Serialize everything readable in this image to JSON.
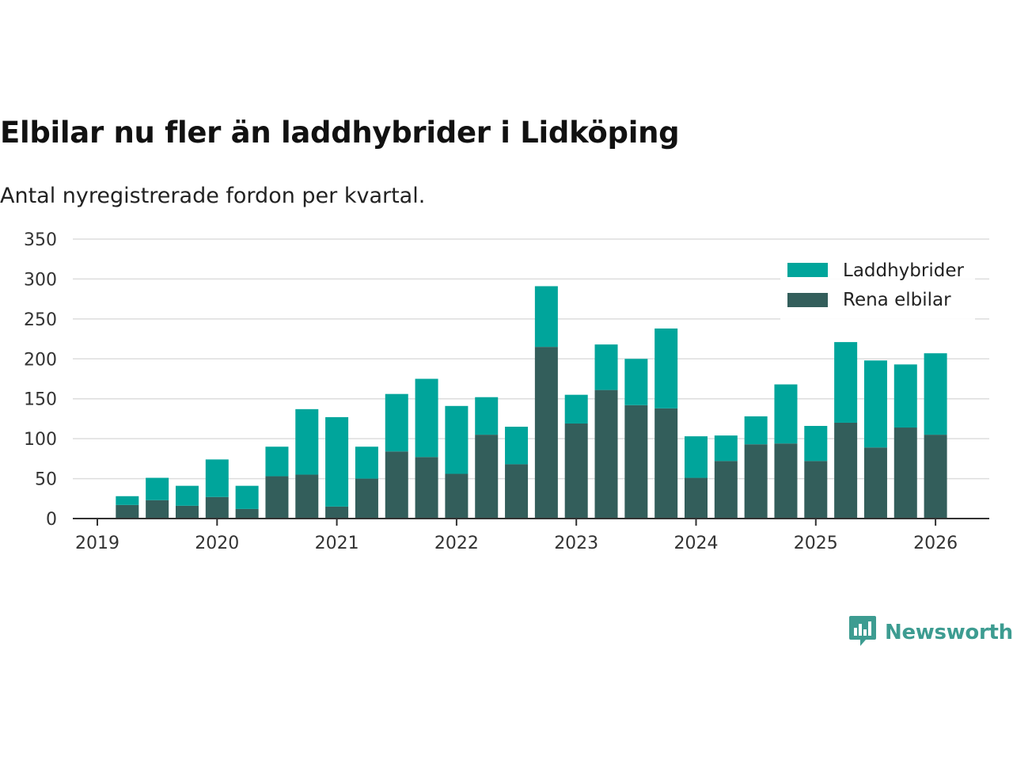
{
  "header": {
    "title": "Elbilar nu fler än laddhybrider i Lidköping",
    "subtitle": "Antal nyregistrerade fordon per kvartal."
  },
  "brand": {
    "name": "Newsworthy",
    "icon": "newsworthy-logo-icon",
    "color": "#3d9c91"
  },
  "colors": {
    "laddhybrider": "#00a59b",
    "rena_elbilar": "#335e5b",
    "grid": "#dddddd",
    "axis": "#333333"
  },
  "chart_data": {
    "type": "bar",
    "stacked": true,
    "title": "Elbilar nu fler än laddhybrider i Lidköping",
    "subtitle": "Antal nyregistrerade fordon per kvartal.",
    "xlabel": "",
    "ylabel": "",
    "ylim": [
      0,
      350
    ],
    "yticks": [
      0,
      50,
      100,
      150,
      200,
      250,
      300,
      350
    ],
    "xticks": [
      "2019",
      "2020",
      "2021",
      "2022",
      "2023",
      "2024",
      "2025",
      "2026"
    ],
    "grid": true,
    "legend_position": "top-right",
    "categories": [
      "2019 Q2",
      "2019 Q3",
      "2019 Q4",
      "2020 Q1",
      "2020 Q2",
      "2020 Q3",
      "2020 Q4",
      "2021 Q1",
      "2021 Q2",
      "2021 Q3",
      "2021 Q4",
      "2022 Q1",
      "2022 Q2",
      "2022 Q3",
      "2022 Q4",
      "2023 Q1",
      "2023 Q2",
      "2023 Q3",
      "2023 Q4",
      "2024 Q1",
      "2024 Q2",
      "2024 Q3",
      "2024 Q4",
      "2025 Q1",
      "2025 Q2",
      "2025 Q3",
      "2025 Q4",
      "2026 Q1"
    ],
    "series": [
      {
        "name": "Rena elbilar",
        "color": "#335e5b",
        "values": [
          17,
          23,
          16,
          27,
          12,
          53,
          55,
          15,
          50,
          84,
          77,
          56,
          105,
          68,
          215,
          119,
          161,
          142,
          138,
          51,
          72,
          93,
          94,
          72,
          120,
          89,
          114,
          105
        ]
      },
      {
        "name": "Laddhybrider",
        "color": "#00a59b",
        "values": [
          11,
          28,
          25,
          47,
          29,
          37,
          82,
          112,
          40,
          72,
          98,
          85,
          47,
          47,
          76,
          36,
          57,
          58,
          100,
          52,
          32,
          35,
          74,
          44,
          101,
          109,
          79,
          102
        ]
      }
    ],
    "legend": [
      "Laddhybrider",
      "Rena elbilar"
    ]
  }
}
